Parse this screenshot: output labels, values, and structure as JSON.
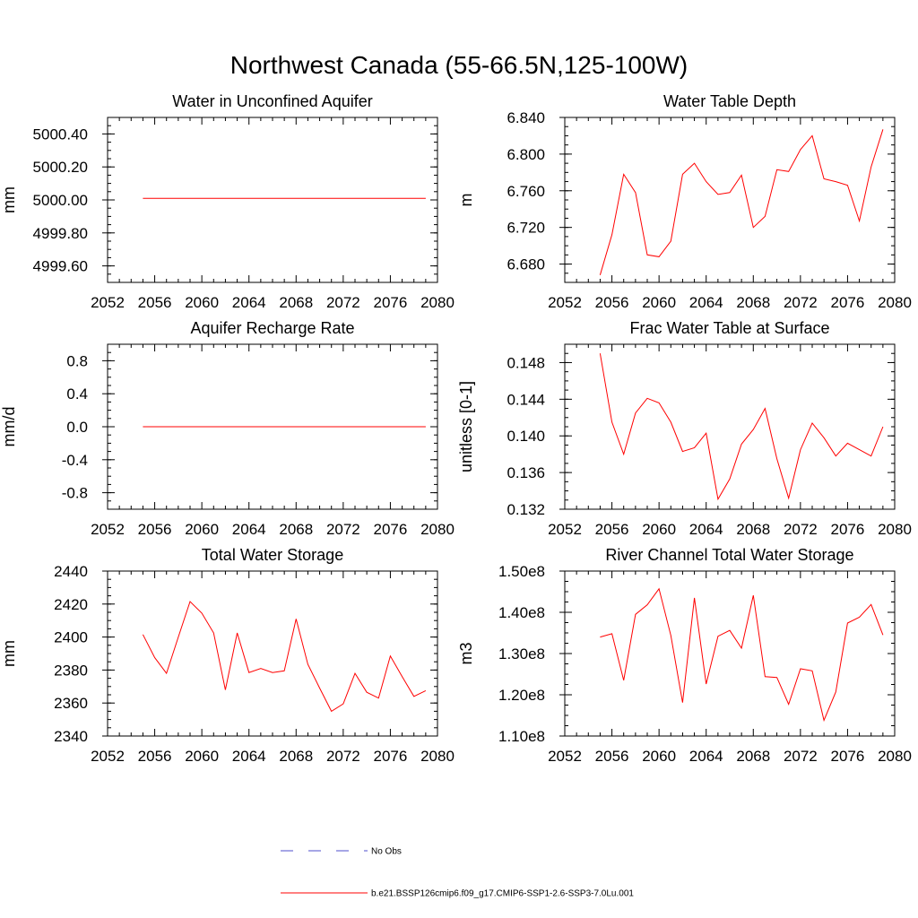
{
  "title": "Northwest Canada (55-66.5N,125-100W)",
  "colors": {
    "model": "#ff0000",
    "obs": "#4d4dcc",
    "axis": "#000000"
  },
  "legend": [
    {
      "label": "No Obs",
      "style": "dashed",
      "color": "#4d4dcc"
    },
    {
      "label": "b.e21.BSSP126cmip6.f09_g17.CMIP6-SSP1-2.6-SSP3-7.0Lu.001",
      "style": "solid",
      "color": "#ff0000"
    }
  ],
  "chart_data": [
    {
      "type": "line",
      "title": "Water in Unconfined Aquifer",
      "ylabel": "mm",
      "xlim": [
        2052,
        2080
      ],
      "xticks": [
        2052,
        2056,
        2060,
        2064,
        2068,
        2072,
        2076,
        2080
      ],
      "ylim": [
        4999.5,
        5000.5
      ],
      "yticks": [
        4999.6,
        4999.8,
        5000.0,
        5000.2,
        5000.4
      ],
      "ytick_labels": [
        "4999.60",
        "4999.80",
        "5000.00",
        "5000.20",
        "5000.40"
      ],
      "x": [
        2055,
        2079
      ],
      "series": [
        {
          "values": [
            5000.01,
            5000.01
          ]
        }
      ]
    },
    {
      "type": "line",
      "title": "Water Table Depth",
      "ylabel": "m",
      "xlim": [
        2052,
        2080
      ],
      "xticks": [
        2052,
        2056,
        2060,
        2064,
        2068,
        2072,
        2076,
        2080
      ],
      "ylim": [
        6.66,
        6.84
      ],
      "yticks": [
        6.68,
        6.72,
        6.76,
        6.8,
        6.84
      ],
      "ytick_labels": [
        "6.680",
        "6.720",
        "6.760",
        "6.800",
        "6.840"
      ],
      "x": [
        2055,
        2056,
        2057,
        2058,
        2059,
        2060,
        2061,
        2062,
        2063,
        2064,
        2065,
        2066,
        2067,
        2068,
        2069,
        2070,
        2071,
        2072,
        2073,
        2074,
        2075,
        2076,
        2077,
        2078,
        2079
      ],
      "series": [
        {
          "values": [
            6.668,
            6.712,
            6.778,
            6.758,
            6.69,
            6.688,
            6.705,
            6.778,
            6.79,
            6.77,
            6.756,
            6.758,
            6.777,
            6.72,
            6.732,
            6.783,
            6.781,
            6.805,
            6.82,
            6.773,
            6.77,
            6.766,
            6.727,
            6.786,
            6.827
          ]
        }
      ]
    },
    {
      "type": "line",
      "title": "Aquifer Recharge Rate",
      "ylabel": "mm/d",
      "xlim": [
        2052,
        2080
      ],
      "xticks": [
        2052,
        2056,
        2060,
        2064,
        2068,
        2072,
        2076,
        2080
      ],
      "ylim": [
        -1.0,
        1.0
      ],
      "yticks": [
        -0.8,
        -0.4,
        0.0,
        0.4,
        0.8
      ],
      "ytick_labels": [
        "-0.8",
        "-0.4",
        "0.0",
        "0.4",
        "0.8"
      ],
      "x": [
        2055,
        2079
      ],
      "series": [
        {
          "values": [
            0.0,
            0.0
          ]
        }
      ]
    },
    {
      "type": "line",
      "title": "Frac Water Table at Surface",
      "ylabel": "unitless [0-1]",
      "xlim": [
        2052,
        2080
      ],
      "xticks": [
        2052,
        2056,
        2060,
        2064,
        2068,
        2072,
        2076,
        2080
      ],
      "ylim": [
        0.132,
        0.15
      ],
      "yticks": [
        0.132,
        0.136,
        0.14,
        0.144,
        0.148
      ],
      "ytick_labels": [
        "0.132",
        "0.136",
        "0.140",
        "0.144",
        "0.148"
      ],
      "x": [
        2055,
        2056,
        2057,
        2058,
        2059,
        2060,
        2061,
        2062,
        2063,
        2064,
        2065,
        2066,
        2067,
        2068,
        2069,
        2070,
        2071,
        2072,
        2073,
        2074,
        2075,
        2076,
        2077,
        2078,
        2079
      ],
      "series": [
        {
          "values": [
            0.149,
            0.1415,
            0.138,
            0.1425,
            0.1441,
            0.1436,
            0.1415,
            0.1383,
            0.1387,
            0.1403,
            0.1331,
            0.1353,
            0.1391,
            0.1407,
            0.143,
            0.1375,
            0.1332,
            0.1385,
            0.1414,
            0.1398,
            0.1378,
            0.1392,
            0.1385,
            0.1378,
            0.141
          ]
        }
      ]
    },
    {
      "type": "line",
      "title": "Total Water Storage",
      "ylabel": "mm",
      "xlim": [
        2052,
        2080
      ],
      "xticks": [
        2052,
        2056,
        2060,
        2064,
        2068,
        2072,
        2076,
        2080
      ],
      "ylim": [
        2340,
        2440
      ],
      "yticks": [
        2340,
        2360,
        2380,
        2400,
        2420,
        2440
      ],
      "ytick_labels": [
        "2340",
        "2360",
        "2380",
        "2400",
        "2420",
        "2440"
      ],
      "x": [
        2055,
        2056,
        2057,
        2058,
        2059,
        2060,
        2061,
        2062,
        2063,
        2064,
        2065,
        2066,
        2067,
        2068,
        2069,
        2070,
        2071,
        2072,
        2073,
        2074,
        2075,
        2076,
        2077,
        2078,
        2079
      ],
      "series": [
        {
          "values": [
            2401.5,
            2387.5,
            2378,
            2400,
            2421.5,
            2414.5,
            2402.5,
            2368,
            2402.5,
            2378.5,
            2381,
            2378.5,
            2379.5,
            2411,
            2383.5,
            2369,
            2355,
            2359.5,
            2378,
            2366.5,
            2363,
            2388.5,
            2376,
            2364,
            2367.5
          ]
        }
      ]
    },
    {
      "type": "line",
      "title": "River Channel Total Water Storage",
      "ylabel": "m3",
      "xlim": [
        2052,
        2080
      ],
      "xticks": [
        2052,
        2056,
        2060,
        2064,
        2068,
        2072,
        2076,
        2080
      ],
      "ylim": [
        110000000,
        150000000
      ],
      "yticks": [
        110000000,
        120000000,
        130000000,
        140000000,
        150000000
      ],
      "ytick_labels": [
        "1.10e8",
        "1.20e8",
        "1.30e8",
        "1.40e8",
        "1.50e8"
      ],
      "x": [
        2055,
        2056,
        2057,
        2058,
        2059,
        2060,
        2061,
        2062,
        2063,
        2064,
        2065,
        2066,
        2067,
        2068,
        2069,
        2070,
        2071,
        2072,
        2073,
        2074,
        2075,
        2076,
        2077,
        2078,
        2079
      ],
      "series": [
        {
          "values": [
            134000000,
            134800000,
            123500000,
            139500000,
            141800000,
            145700000,
            134400000,
            118100000,
            143500000,
            122600000,
            134200000,
            135600000,
            131300000,
            144100000,
            124400000,
            124200000,
            117700000,
            126300000,
            125800000,
            113800000,
            120700000,
            137400000,
            138800000,
            141900000,
            134500000
          ]
        }
      ]
    }
  ]
}
